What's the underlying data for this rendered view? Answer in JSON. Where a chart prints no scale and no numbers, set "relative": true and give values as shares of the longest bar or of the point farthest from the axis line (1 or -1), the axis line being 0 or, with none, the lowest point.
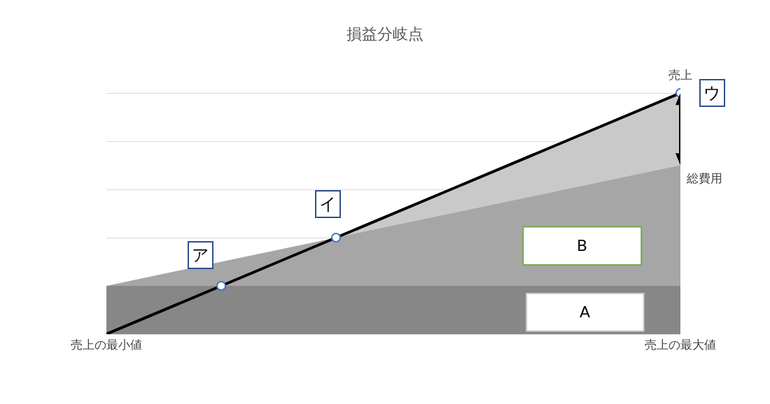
{
  "chart_data": {
    "type": "area",
    "title": "損益分岐点",
    "relative": true,
    "grid": "y",
    "categories": [
      "売上の最小値",
      null,
      null,
      null,
      null,
      "売上の最大値"
    ],
    "series": [
      {
        "color": "#c9c9c9",
        "values": [
          null,
          null,
          0.4,
          0.6,
          0.8,
          1
        ]
      },
      {
        "name": "総費用",
        "color": "#a6a6a6",
        "values": [
          0.2,
          0.3,
          0.4,
          0.5,
          0.6,
          0.7
        ]
      },
      {
        "color": "#878787",
        "values": [
          0.2,
          0.2,
          0.2,
          0.2,
          0.2,
          0.2
        ]
      },
      {
        "type": "line",
        "name": "売上",
        "color": "#000000",
        "values": [
          0,
          0.2,
          0.4,
          0.6,
          0.8,
          1
        ]
      },
      {
        "type": "scatter",
        "color": "#4472c4",
        "marker": "circle",
        "values": [
          null,
          0.2,
          0.4,
          null,
          null,
          1
        ]
      }
    ],
    "annotations": [
      "ア",
      "イ",
      "ウ",
      "B",
      "A"
    ]
  }
}
